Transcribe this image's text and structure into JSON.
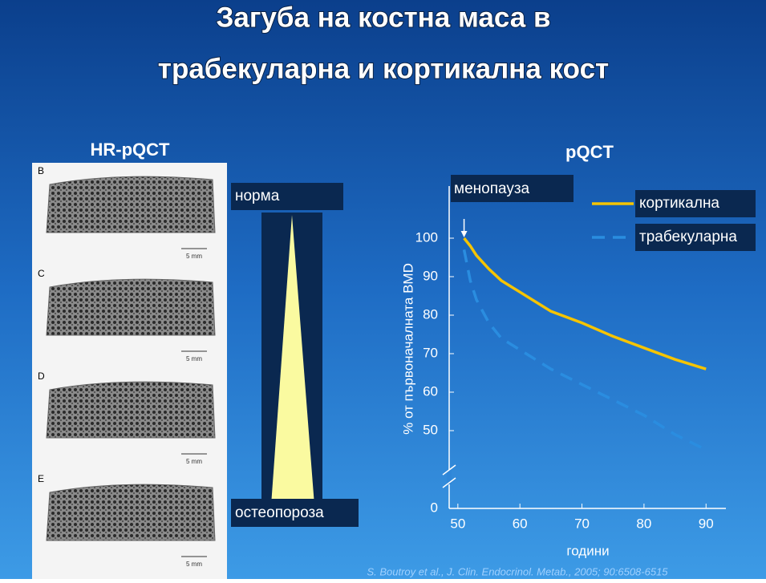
{
  "slide": {
    "title": [
      "Загуба на костна маса в",
      "трабекуларна и кортикална кост"
    ],
    "left_title": "HR-pQCT",
    "images": [
      {
        "label": "B",
        "scale": "5 mm"
      },
      {
        "label": "C",
        "scale": "5 mm"
      },
      {
        "label": "D",
        "scale": "5 mm"
      },
      {
        "label": "E",
        "scale": "5 mm"
      }
    ],
    "scale_top": "норма",
    "scale_bottom": "остеопороза",
    "citation": "S. Boutroy et al., J. Clin. Endocrinol. Metab., 2005; 90:6508-6515"
  },
  "chart_data": {
    "type": "line",
    "title": "pQCT",
    "y_label": "% от първоначалната BMD",
    "x_label": "години",
    "annotation": "менопауза",
    "x": [
      51,
      52,
      53,
      55,
      57,
      60,
      65,
      70,
      75,
      80,
      85,
      90
    ],
    "series": [
      {
        "name": "кортикална",
        "color": "#f5c400",
        "dash": false,
        "values": [
          100,
          98,
          95.5,
          92,
          89,
          86,
          81,
          78,
          74.5,
          71.5,
          68.5,
          66
        ]
      },
      {
        "name": "трабекуларна",
        "color": "#2a8de0",
        "dash": true,
        "values": [
          97,
          89,
          84,
          78,
          74,
          71,
          66,
          62,
          58,
          54,
          49,
          45
        ]
      }
    ],
    "xlim": [
      48.6,
      93.2
    ],
    "xticks": [
      50,
      60,
      70,
      80,
      90
    ],
    "ylim": [
      0,
      105
    ],
    "yticks": [
      0,
      50,
      60,
      70,
      80,
      90,
      100
    ],
    "y_break": true
  }
}
